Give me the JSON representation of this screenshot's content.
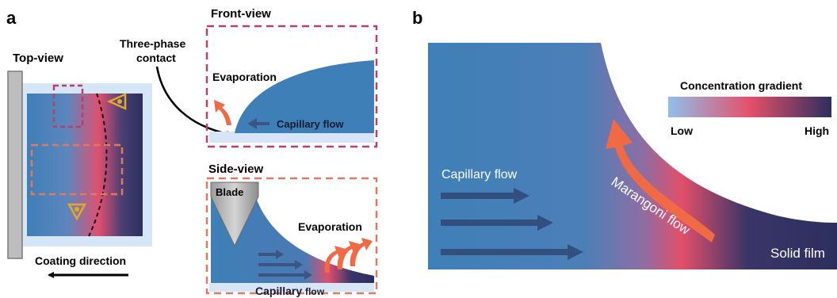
{
  "panel_a": {
    "label": "a",
    "top_view": {
      "title": "Top-view",
      "coating_direction": "Coating direction"
    },
    "three_phase_contact": [
      "Three-phase",
      "contact"
    ],
    "front_view": {
      "title": "Front-view",
      "evaporation": "Evaporation",
      "capillary_flow": "Capillary flow"
    },
    "side_view": {
      "title": "Side-view",
      "blade": "Blade",
      "evaporation": "Evaporation",
      "capillary_flow_1": "Capillary",
      "capillary_flow_2": "flow"
    }
  },
  "panel_b": {
    "label": "b",
    "legend": {
      "title": "Concentration gradient",
      "low": "Low",
      "high": "High"
    },
    "capillary_flow": "Capillary flow",
    "marangoni_flow": "Marangoni flow",
    "solid_film": "Solid film"
  },
  "colors": {
    "solution_blue": "#3f7fb7",
    "light_blue": "#d7e6f6",
    "pink": "#e4506a",
    "dark_navy": "#2c2f5e",
    "orange_arrow": "#f06a45",
    "arrow_navy": "#3b5584",
    "box_magenta": "#b8406b",
    "box_orange": "#e07a5a",
    "eye_yellow": "#e0a92c"
  },
  "icons": [
    "eye-icon",
    "eye-icon"
  ]
}
